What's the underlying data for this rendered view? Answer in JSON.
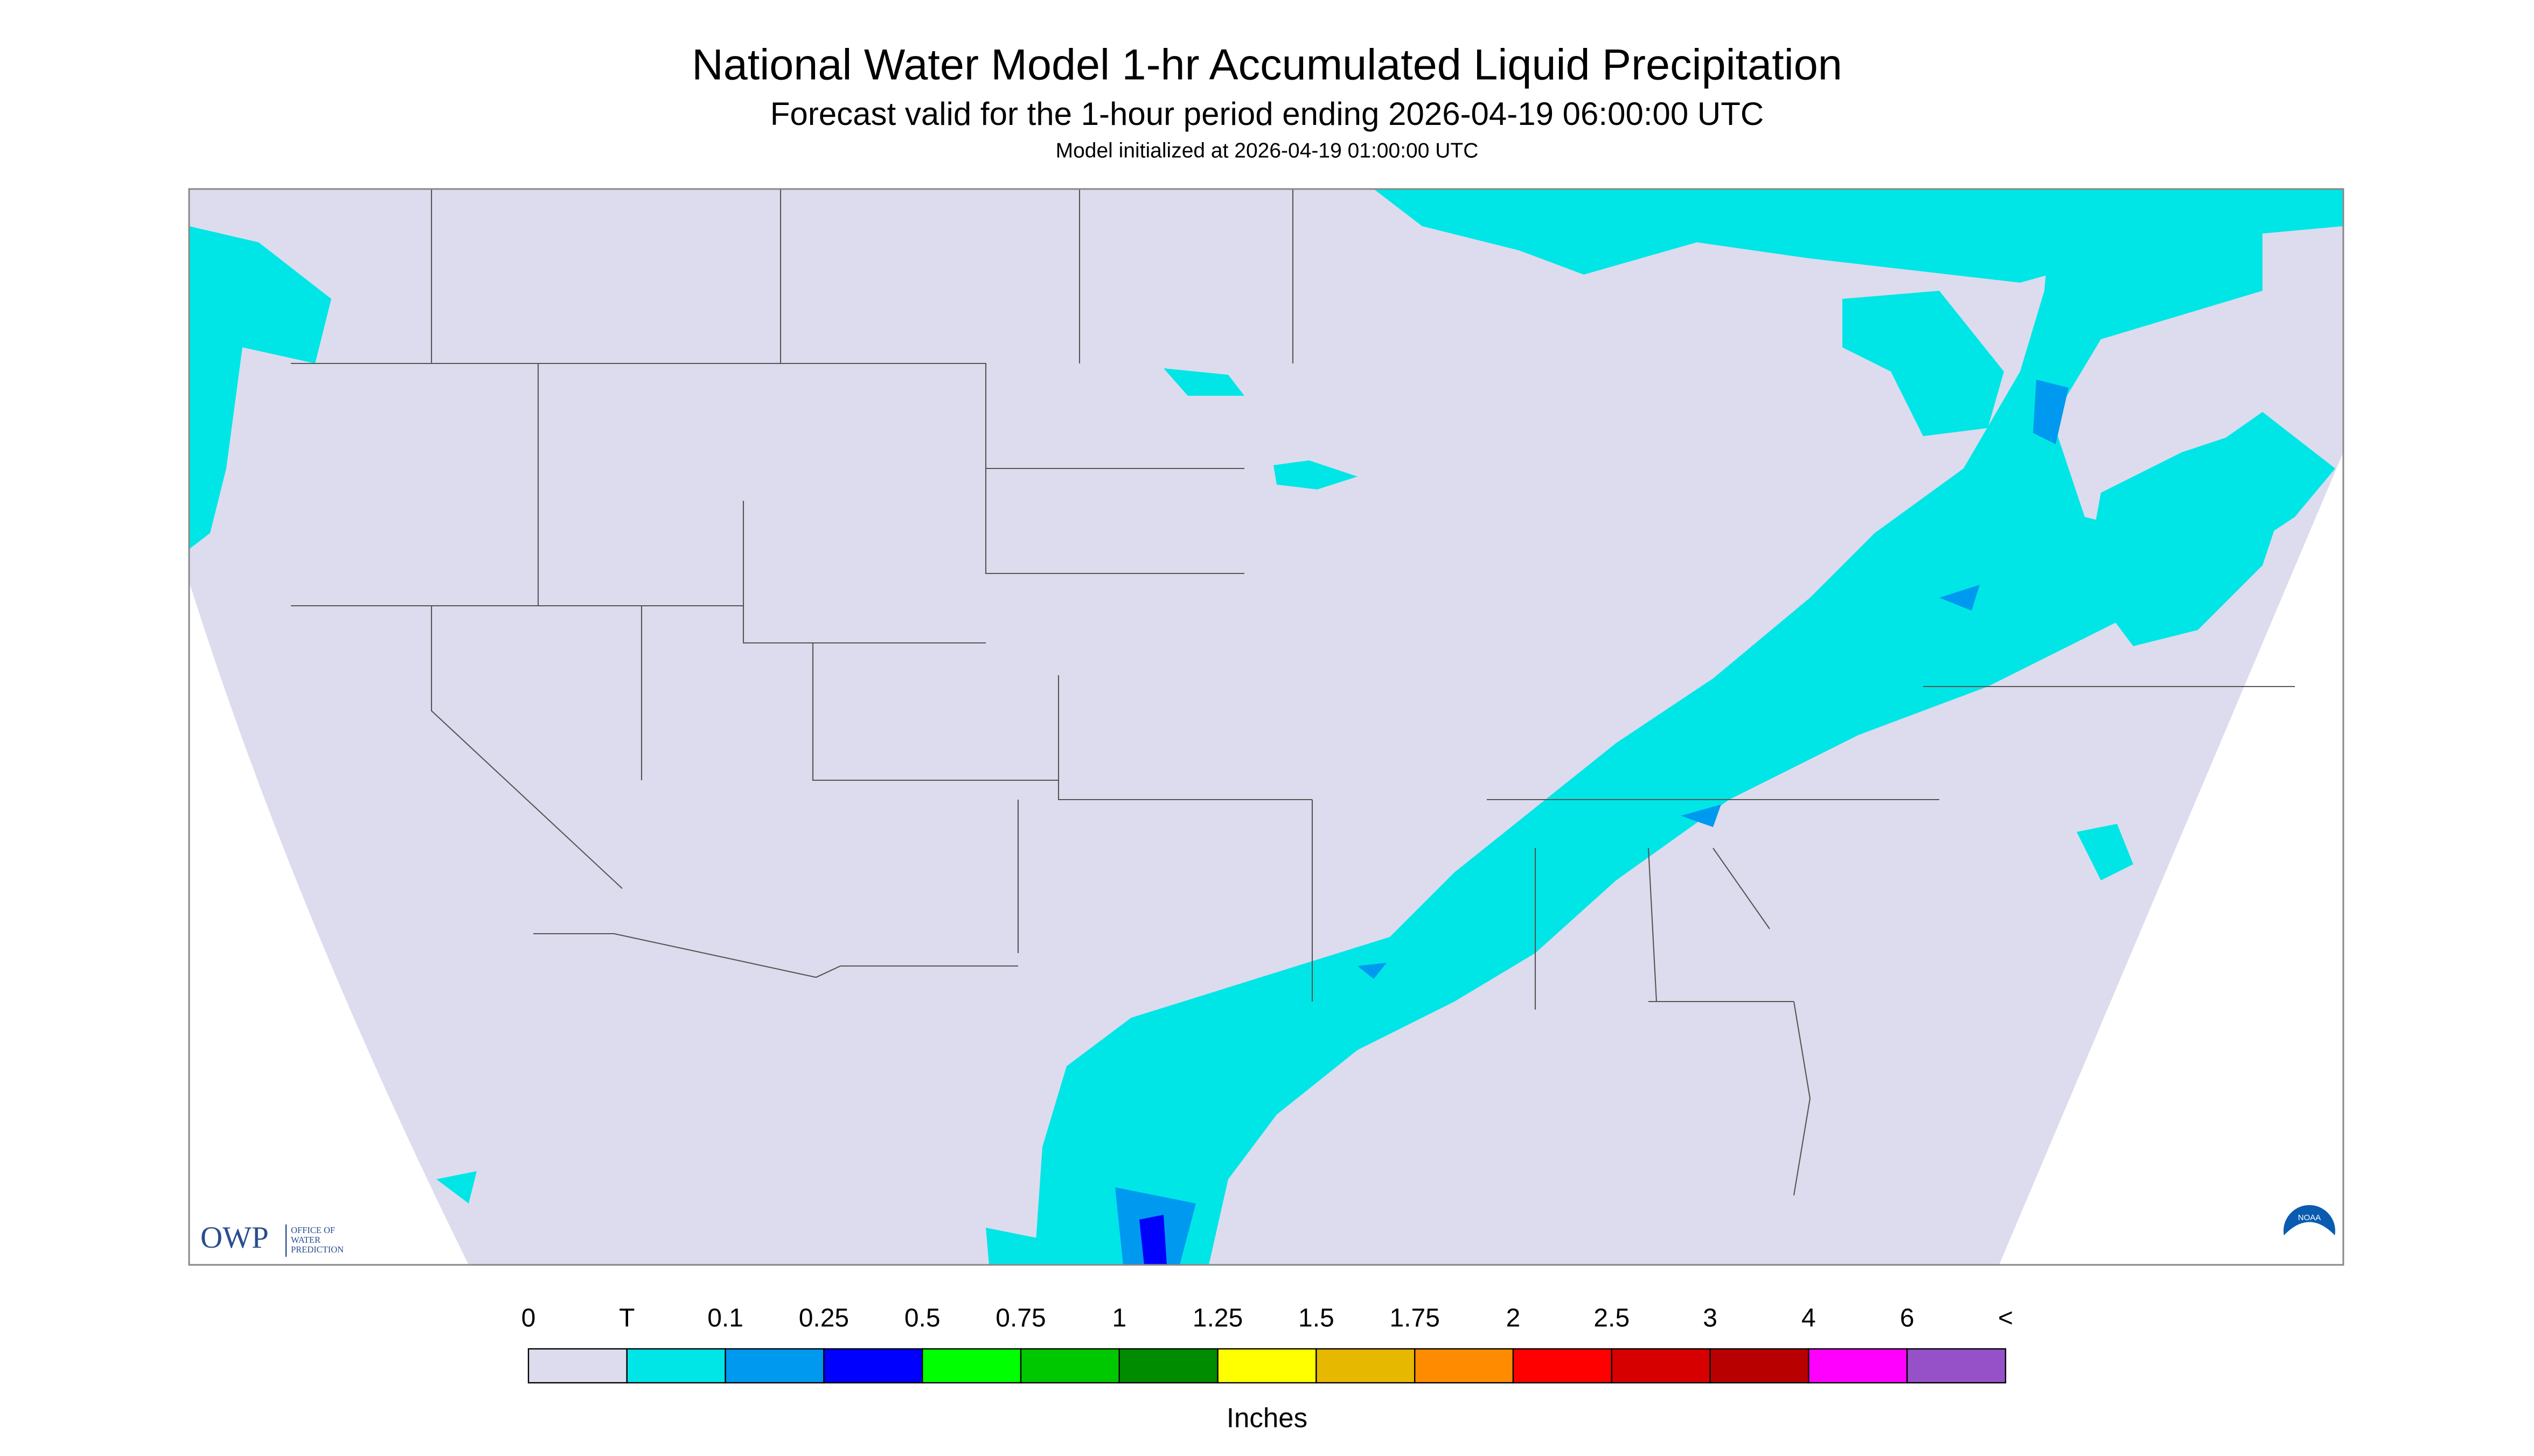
{
  "header": {
    "title": "National Water Model 1-hr Accumulated Liquid Precipitation",
    "subtitle": "Forecast valid for the 1-hour period ending 2026-04-19 06:00:00 UTC",
    "note": "Model initialized at 2026-04-19 01:00:00 UTC"
  },
  "legend": {
    "labels": [
      "0",
      "T",
      "0.1",
      "0.25",
      "0.5",
      "0.75",
      "1",
      "1.25",
      "1.5",
      "1.75",
      "2",
      "2.5",
      "3",
      "4",
      "6",
      "<"
    ],
    "colors": [
      "#dcdcee",
      "#00e6e6",
      "#0099f0",
      "#0000ff",
      "#00ff00",
      "#00c800",
      "#008c00",
      "#ffff00",
      "#e6b900",
      "#ff8c00",
      "#ff0000",
      "#d70000",
      "#b90000",
      "#ff00ff",
      "#9650c8"
    ],
    "unit": "Inches"
  },
  "logo": {
    "acronym": "OWP",
    "name": [
      "OFFICE OF",
      "WATER",
      "PREDICTION"
    ],
    "agency": "NOAA"
  }
}
